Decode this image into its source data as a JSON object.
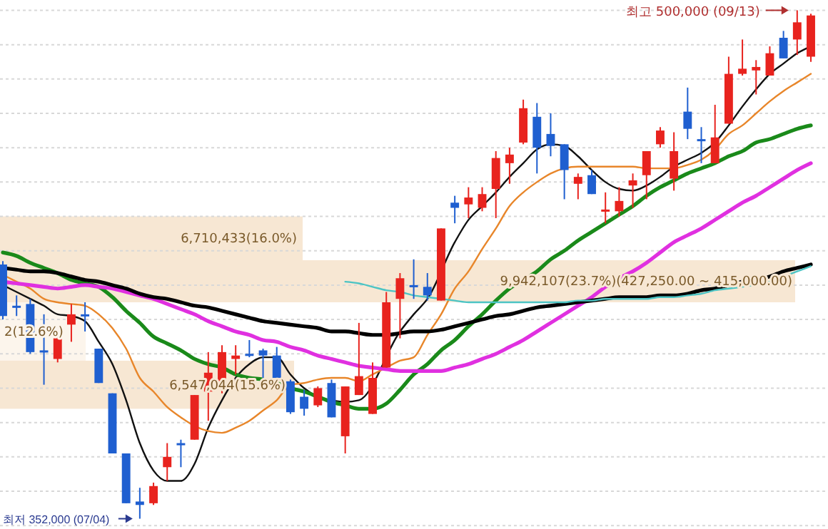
{
  "chart_data": {
    "type": "candlestick",
    "categories": [
      null,
      null,
      null,
      null,
      null,
      null,
      null,
      null,
      null,
      null,
      null,
      null,
      null,
      null,
      null,
      null,
      null,
      null,
      null,
      null,
      null,
      null,
      null,
      null,
      null,
      null,
      null,
      null,
      null,
      null,
      null,
      null,
      null,
      null,
      null,
      null,
      null,
      null,
      null,
      null,
      null,
      null,
      null,
      null,
      null,
      null,
      null,
      null,
      null,
      null,
      null,
      null,
      null,
      null,
      null,
      null,
      null,
      null,
      null,
      null
    ],
    "colors": [
      "#1f5fd0",
      "#1f5fd0",
      "#1f5fd0",
      "#1f5fd0",
      "#e8231e",
      "#e8231e",
      "#1f5fd0",
      "#1f5fd0",
      "#1f5fd0",
      "#1f5fd0",
      "#1f5fd0",
      "#e8231e",
      "#e8231e",
      "#1f5fd0",
      "#e8231e",
      "#e8231e",
      "#e8231e",
      "#e8231e",
      "#1f5fd0",
      "#1f5fd0",
      "#1f5fd0",
      "#1f5fd0",
      "#1f5fd0",
      "#e8231e",
      "#1f5fd0",
      "#e8231e",
      "#e8231e",
      "#e8231e",
      "#e8231e",
      "#e8231e",
      "#1f5fd0",
      "#1f5fd0",
      "#e8231e",
      "#1f5fd0",
      "#e8231e",
      "#e8231e",
      "#e8231e",
      "#e8231e",
      "#e8231e",
      "#1f5fd0",
      "#1f5fd0",
      "#1f5fd0",
      "#e8231e",
      "#1f5fd0",
      "#e8231e",
      "#e8231e",
      "#e8231e",
      "#e8231e",
      "#e8231e",
      "#e8231e",
      "#1f5fd0",
      "#1f5fd0",
      "#e8231e",
      "#e8231e",
      "#e8231e",
      "#e8231e",
      "#e8231e",
      "#1f5fd0",
      "#e8231e",
      "#e8231e"
    ],
    "ohlc": [
      [
        426000,
        427000,
        410000,
        411000
      ],
      [
        414000,
        417000,
        411000,
        413500
      ],
      [
        414500,
        416000,
        400000,
        400500
      ],
      [
        401000,
        411500,
        391000,
        400500
      ],
      [
        398500,
        405500,
        397500,
        404500
      ],
      [
        408500,
        414500,
        403500,
        411500
      ],
      [
        411500,
        415000,
        406500,
        411000
      ],
      [
        401500,
        401500,
        391500,
        391500
      ],
      [
        388500,
        388500,
        371000,
        371000
      ],
      [
        371000,
        371000,
        356500,
        356500
      ],
      [
        357000,
        361000,
        352000,
        356000
      ],
      [
        356500,
        362500,
        356000,
        361500
      ],
      [
        367000,
        374000,
        363000,
        370000
      ],
      [
        374000,
        375000,
        367000,
        373500
      ],
      [
        375000,
        388000,
        375000,
        388000
      ],
      [
        389000,
        400500,
        380500,
        394500
      ],
      [
        392000,
        402500,
        388500,
        400500
      ],
      [
        398500,
        402500,
        394000,
        399500
      ],
      [
        400000,
        404000,
        399000,
        399500
      ],
      [
        401000,
        401500,
        393000,
        399500
      ],
      [
        399500,
        402000,
        392000,
        393000
      ],
      [
        392000,
        392500,
        382500,
        383000
      ],
      [
        387500,
        389500,
        382000,
        384000
      ],
      [
        385000,
        390500,
        384500,
        390000
      ],
      [
        391500,
        392500,
        381500,
        381500
      ],
      [
        376000,
        390500,
        371000,
        390500
      ],
      [
        388000,
        409000,
        388000,
        393500
      ],
      [
        382500,
        397500,
        382500,
        393000
      ],
      [
        396000,
        418000,
        396000,
        415000
      ],
      [
        416000,
        423500,
        404500,
        422000
      ],
      [
        420000,
        427500,
        416000,
        419500
      ],
      [
        419500,
        423500,
        415500,
        417000
      ],
      [
        415500,
        436500,
        415500,
        436500
      ],
      [
        444000,
        446000,
        438000,
        442500
      ],
      [
        443500,
        448500,
        439500,
        445500
      ],
      [
        442500,
        448500,
        441500,
        446500
      ],
      [
        448000,
        459000,
        439500,
        457000
      ],
      [
        455500,
        460000,
        449500,
        458000
      ],
      [
        461500,
        474000,
        461000,
        471500
      ],
      [
        469000,
        473000,
        452500,
        460000
      ],
      [
        464000,
        470000,
        457500,
        460500
      ],
      [
        461000,
        461000,
        445000,
        453500
      ],
      [
        449500,
        452500,
        445000,
        451500
      ],
      [
        452000,
        453500,
        446500,
        446500
      ],
      [
        441500,
        447000,
        438000,
        442000
      ],
      [
        441500,
        448500,
        440000,
        444500
      ],
      [
        449000,
        452500,
        442500,
        450500
      ],
      [
        452000,
        459000,
        445000,
        459000
      ],
      [
        461000,
        466000,
        460000,
        465000
      ],
      [
        451000,
        464500,
        447500,
        459000
      ],
      [
        470500,
        477500,
        462500,
        465500
      ],
      [
        462500,
        466000,
        455500,
        462000
      ],
      [
        455500,
        472500,
        455500,
        463000
      ],
      [
        467000,
        486500,
        467000,
        481500
      ],
      [
        481500,
        491500,
        481000,
        483000
      ],
      [
        482500,
        485500,
        475500,
        483500
      ],
      [
        481000,
        489500,
        481000,
        487500
      ],
      [
        492000,
        494000,
        486000,
        486000
      ],
      [
        491500,
        500000,
        487000,
        496500
      ],
      [
        486500,
        499000,
        485000,
        498500
      ]
    ],
    "series": [
      {
        "type": "line",
        "color": "#111111",
        "values": [
          420000,
          418000,
          416000,
          414000,
          411500,
          411000,
          409500,
          403500,
          397000,
          386500,
          374000,
          366000,
          363000,
          363000,
          368000,
          378500,
          386500,
          393000,
          397000,
          399000,
          399000,
          394000,
          390000,
          387500,
          386500,
          386000,
          386500,
          null,
          null,
          406500,
          411500,
          416000,
          null,
          432500,
          439000,
          443000,
          447000,
          451500,
          455500,
          459500,
          461000,
          460500,
          457500,
          453500,
          450000,
          448000,
          447500,
          449000,
          451500,
          454500,
          456500,
          458500,
          461500,
          466500,
          472000,
          477000,
          481500,
          484500,
          487500,
          489500
        ]
      },
      {
        "type": "line",
        "color": "#e8862a",
        "values": [
          423000,
          421000,
          419000,
          416000,
          415000,
          414500,
          414000,
          411500,
          407500,
          401500,
          393000,
          389000,
          384500,
          381500,
          379000,
          377500,
          377000,
          378500,
          380500,
          383500,
          386500,
          391000,
          391500,
          392500,
          393000,
          393000,
          392000,
          394000,
          396000,
          398000,
          399000,
          405500,
          411500,
          419000,
          424000,
          430500,
          436500,
          443000,
          447000,
          450000,
          452500,
          454000,
          454500,
          454500,
          454500,
          454500,
          454500,
          454000,
          454000,
          454000,
          455000,
          456500,
          459500,
          464000,
          466500,
          470000,
          473500,
          476500,
          479000,
          481500
        ]
      },
      {
        "type": "line",
        "color": "#1a8a1a",
        "values": [
          429500,
          428500,
          426500,
          425000,
          423500,
          421500,
          420500,
          419500,
          416500,
          412500,
          409000,
          405000,
          403000,
          401000,
          398500,
          397000,
          396000,
          394000,
          393000,
          392500,
          391500,
          390000,
          389000,
          387500,
          386000,
          385000,
          384000,
          384000,
          385500,
          389500,
          394000,
          397000,
          401000,
          404000,
          408000,
          411500,
          415500,
          419000,
          421500,
          424000,
          427500,
          430000,
          433000,
          435500,
          438000,
          440500,
          443000,
          446000,
          448500,
          450500,
          452500,
          454000,
          455500,
          457500,
          459000,
          461500,
          462500,
          464000,
          465500,
          466500
        ]
      },
      {
        "type": "line",
        "color": "#e030e0",
        "values": [
          421000,
          420500,
          420000,
          419500,
          419000,
          419500,
          420000,
          419500,
          419000,
          418000,
          417000,
          416000,
          414500,
          413000,
          411500,
          409500,
          408000,
          406500,
          405500,
          404000,
          403500,
          402000,
          401000,
          399500,
          398500,
          397500,
          396500,
          396000,
          395500,
          395000,
          395000,
          395000,
          395000,
          396000,
          397000,
          398500,
          400000,
          402000,
          404000,
          406500,
          409000,
          411500,
          414000,
          416500,
          419500,
          422000,
          424000,
          426500,
          429500,
          432500,
          434500,
          436500,
          439000,
          441500,
          444000,
          446000,
          448500,
          451000,
          453500,
          455500
        ]
      },
      {
        "type": "line",
        "color": "#000000",
        "values": [
          425000,
          424500,
          424000,
          424000,
          423500,
          422500,
          421500,
          421000,
          420000,
          419000,
          417500,
          416500,
          416000,
          415000,
          414000,
          413500,
          412500,
          411500,
          410500,
          409500,
          409000,
          408500,
          408000,
          407500,
          406500,
          406500,
          406000,
          405500,
          405500,
          406000,
          406500,
          406500,
          407000,
          408000,
          409000,
          410000,
          411000,
          411500,
          412500,
          413500,
          414000,
          414500,
          415000,
          415500,
          416000,
          416500,
          416500,
          416500,
          417000,
          417000,
          417500,
          418500,
          419000,
          420000,
          421000,
          421500,
          422500,
          424000,
          425000,
          426000
        ]
      },
      {
        "type": "line",
        "color": "#4cc4c4",
        "values": [
          null,
          null,
          null,
          null,
          null,
          null,
          null,
          null,
          null,
          null,
          null,
          null,
          null,
          null,
          null,
          null,
          null,
          null,
          null,
          null,
          null,
          null,
          null,
          null,
          null,
          421000,
          420500,
          419500,
          418500,
          418000,
          417000,
          416500,
          416000,
          415500,
          415000,
          415000,
          415000,
          415000,
          415000,
          415000,
          415000,
          415000,
          415500,
          415500,
          416000,
          416000,
          416000,
          416000,
          416500,
          416500,
          417000,
          417500,
          418500,
          419000,
          419500,
          null,
          421000,
          422500,
          424000,
          425500
        ]
      }
    ],
    "bands": [
      {
        "axis": "y",
        "from": 427250,
        "to": 440000,
        "label": "6,710,433(16.0%)",
        "color": "#f7e7d3"
      },
      {
        "axis": "y",
        "from": 415000,
        "to": 427250,
        "label": "9,942,107(23.7%)(427,250.00 ~ 415,000.00)",
        "color": "#f7e7d3"
      },
      {
        "axis": "y",
        "from": 398000,
        "to": 415000,
        "label": "2(12.6%)",
        "color": "#fcf5ec"
      },
      {
        "axis": "y",
        "from": 384000,
        "to": 398000,
        "label": "6,547,044(15.6%)",
        "color": "#f7e7d3"
      }
    ],
    "annotations": [
      "최고 500,000 (09/13)",
      "최저 352,000 (07/04)"
    ],
    "ylim": [
      349000,
      503000
    ],
    "yticks": [
      {
        "value": 500000,
        "label": null
      },
      {
        "value": 490000,
        "label": null
      },
      {
        "value": 480000,
        "label": null
      },
      {
        "value": 470000,
        "label": null
      },
      {
        "value": 460000,
        "label": null
      },
      {
        "value": 450000,
        "label": null
      },
      {
        "value": 440000,
        "label": null
      },
      {
        "value": 430000,
        "label": null
      },
      {
        "value": 420000,
        "label": null
      },
      {
        "value": 410000,
        "label": null
      },
      {
        "value": 400000,
        "label": null
      },
      {
        "value": 390000,
        "label": null
      },
      {
        "value": 380000,
        "label": null
      },
      {
        "value": 370000,
        "label": null
      },
      {
        "value": 360000,
        "label": null
      },
      {
        "value": 350000,
        "label": null
      }
    ],
    "grid": "y",
    "tick_labels": false
  }
}
